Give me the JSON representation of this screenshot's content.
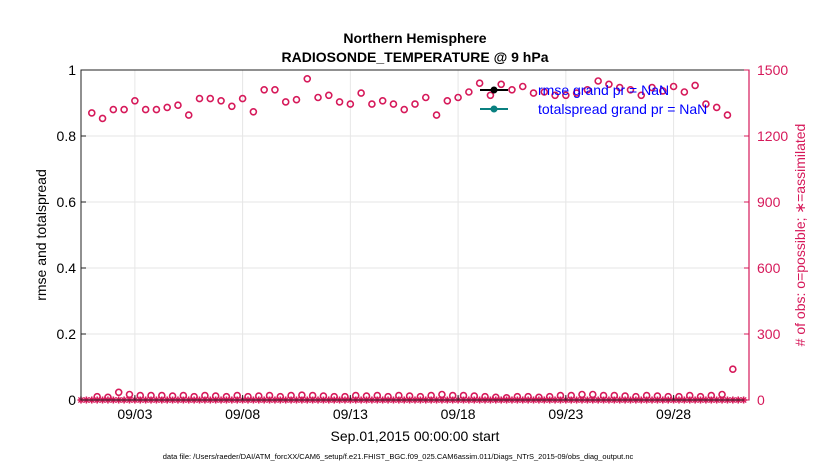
{
  "chart_data": {
    "type": "scatter",
    "title": "Northern Hemisphere",
    "subtitle": "RADIOSONDE_TEMPERATURE @ 9 hPa",
    "xlabel": "Sep.01,2015 00:00:00 start",
    "ylabel_left": "rmse and totalspread",
    "ylabel_right": "# of obs: o=possible; ∗=assimilated",
    "xlim": [
      0.5,
      31.5
    ],
    "ylim_left": [
      0,
      1
    ],
    "ylim_right": [
      0,
      1500
    ],
    "x_ticks": [
      {
        "x": 3,
        "label": "09/03"
      },
      {
        "x": 8,
        "label": "09/08"
      },
      {
        "x": 13,
        "label": "09/13"
      },
      {
        "x": 18,
        "label": "09/18"
      },
      {
        "x": 23,
        "label": "09/23"
      },
      {
        "x": 28,
        "label": "09/28"
      }
    ],
    "y_ticks_left": [
      {
        "v": 0,
        "label": "0"
      },
      {
        "v": 0.2,
        "label": "0.2"
      },
      {
        "v": 0.4,
        "label": "0.4"
      },
      {
        "v": 0.6,
        "label": "0.6"
      },
      {
        "v": 0.8,
        "label": "0.8"
      },
      {
        "v": 1,
        "label": "1"
      }
    ],
    "y_ticks_right": [
      {
        "v": 0,
        "label": "0"
      },
      {
        "v": 300,
        "label": "300"
      },
      {
        "v": 600,
        "label": "600"
      },
      {
        "v": 900,
        "label": "900"
      },
      {
        "v": 1200,
        "label": "1200"
      },
      {
        "v": 1500,
        "label": "1500"
      }
    ],
    "legend": [
      {
        "label": "rmse grand pr = NaN",
        "color": "#000000"
      },
      {
        "label": "totalspread grand pr = NaN",
        "color": "#0a8080"
      }
    ],
    "legend_text_color": "#0000ff",
    "legend_position": "top-right",
    "series": [
      {
        "name": "possible",
        "marker": "o",
        "color": "#d6195a",
        "axis": "right",
        "points": [
          [
            1.0,
            1305
          ],
          [
            1.25,
            15
          ],
          [
            1.5,
            1280
          ],
          [
            1.75,
            12
          ],
          [
            2.0,
            1320
          ],
          [
            2.25,
            35
          ],
          [
            2.5,
            1320
          ],
          [
            2.75,
            25
          ],
          [
            3.0,
            1360
          ],
          [
            3.25,
            20
          ],
          [
            3.5,
            1320
          ],
          [
            3.75,
            20
          ],
          [
            4.0,
            1320
          ],
          [
            4.25,
            20
          ],
          [
            4.5,
            1330
          ],
          [
            4.75,
            18
          ],
          [
            5.0,
            1340
          ],
          [
            5.25,
            20
          ],
          [
            5.5,
            1295
          ],
          [
            5.75,
            15
          ],
          [
            6.0,
            1370
          ],
          [
            6.25,
            20
          ],
          [
            6.5,
            1370
          ],
          [
            6.75,
            18
          ],
          [
            7.0,
            1360
          ],
          [
            7.25,
            15
          ],
          [
            7.5,
            1335
          ],
          [
            7.75,
            20
          ],
          [
            8.0,
            1370
          ],
          [
            8.25,
            15
          ],
          [
            8.5,
            1310
          ],
          [
            8.75,
            18
          ],
          [
            9.0,
            1410
          ],
          [
            9.25,
            20
          ],
          [
            9.5,
            1410
          ],
          [
            9.75,
            15
          ],
          [
            10.0,
            1355
          ],
          [
            10.25,
            20
          ],
          [
            10.5,
            1365
          ],
          [
            10.75,
            22
          ],
          [
            11.0,
            1460
          ],
          [
            11.25,
            20
          ],
          [
            11.5,
            1375
          ],
          [
            11.75,
            18
          ],
          [
            12.0,
            1385
          ],
          [
            12.25,
            15
          ],
          [
            12.5,
            1355
          ],
          [
            12.75,
            15
          ],
          [
            13.0,
            1345
          ],
          [
            13.25,
            20
          ],
          [
            13.5,
            1395
          ],
          [
            13.75,
            18
          ],
          [
            14.0,
            1345
          ],
          [
            14.25,
            20
          ],
          [
            14.5,
            1360
          ],
          [
            14.75,
            15
          ],
          [
            15.0,
            1345
          ],
          [
            15.25,
            20
          ],
          [
            15.5,
            1320
          ],
          [
            15.75,
            18
          ],
          [
            16.0,
            1345
          ],
          [
            16.25,
            15
          ],
          [
            16.5,
            1375
          ],
          [
            16.75,
            20
          ],
          [
            17.0,
            1295
          ],
          [
            17.25,
            25
          ],
          [
            17.5,
            1360
          ],
          [
            17.75,
            20
          ],
          [
            18.0,
            1375
          ],
          [
            18.25,
            20
          ],
          [
            18.5,
            1400
          ],
          [
            18.75,
            18
          ],
          [
            19.0,
            1440
          ],
          [
            19.25,
            15
          ],
          [
            19.5,
            1385
          ],
          [
            19.75,
            12
          ],
          [
            20.0,
            1435
          ],
          [
            20.25,
            10
          ],
          [
            20.5,
            1410
          ],
          [
            20.75,
            15
          ],
          [
            21.0,
            1425
          ],
          [
            21.25,
            15
          ],
          [
            21.5,
            1395
          ],
          [
            21.75,
            12
          ],
          [
            22.0,
            1400
          ],
          [
            22.25,
            15
          ],
          [
            22.5,
            1385
          ],
          [
            22.75,
            20
          ],
          [
            23.0,
            1385
          ],
          [
            23.25,
            20
          ],
          [
            23.5,
            1395
          ],
          [
            23.75,
            25
          ],
          [
            24.0,
            1410
          ],
          [
            24.25,
            25
          ],
          [
            24.5,
            1450
          ],
          [
            24.75,
            20
          ],
          [
            25.0,
            1435
          ],
          [
            25.25,
            20
          ],
          [
            25.5,
            1420
          ],
          [
            25.75,
            18
          ],
          [
            26.0,
            1410
          ],
          [
            26.25,
            15
          ],
          [
            26.5,
            1385
          ],
          [
            26.75,
            20
          ],
          [
            27.0,
            1420
          ],
          [
            27.25,
            18
          ],
          [
            27.5,
            1405
          ],
          [
            27.75,
            15
          ],
          [
            28.0,
            1425
          ],
          [
            28.25,
            15
          ],
          [
            28.5,
            1400
          ],
          [
            28.75,
            20
          ],
          [
            29.0,
            1430
          ],
          [
            29.25,
            15
          ],
          [
            29.5,
            1345
          ],
          [
            29.75,
            20
          ],
          [
            30.0,
            1330
          ],
          [
            30.25,
            25
          ],
          [
            30.5,
            1295
          ],
          [
            30.75,
            140
          ]
        ]
      },
      {
        "name": "assimilated",
        "marker": "*",
        "color": "#d6195a",
        "axis": "right",
        "values_note": "0 at every plotted time step",
        "x_start": 0.5,
        "x_end": 31.25,
        "x_step": 0.25,
        "value": 0
      }
    ]
  },
  "footer": {
    "data_file": "data file: /Users/raeder/DAI/ATM_forcXX/CAM6_setup/f.e21.FHIST_BGC.f09_025.CAM6assim.011/Diags_NTrS_2015-09/obs_diag_output.nc"
  }
}
